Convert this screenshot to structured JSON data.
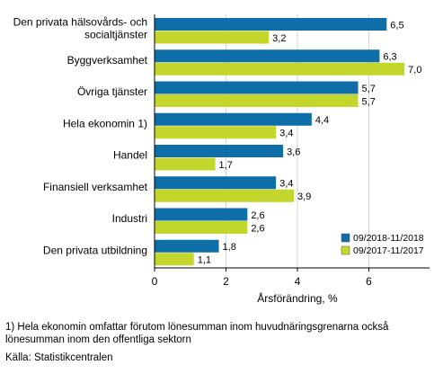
{
  "chart_data": {
    "type": "bar",
    "orientation": "horizontal",
    "categories": [
      "Den privata hälsovårds- och socialtjänster",
      "Byggverksamhet",
      "Övriga tjänster",
      "Hela ekonomin 1)",
      "Handel",
      "Finansiell verksamhet",
      "Industri",
      "Den privata utbildning"
    ],
    "category_lines": [
      [
        "Den privata hälsovårds- och",
        "socialtjänster"
      ],
      [
        "Byggverksamhet"
      ],
      [
        "Övriga tjänster"
      ],
      [
        "Hela ekonomin 1)"
      ],
      [
        "Handel"
      ],
      [
        "Finansiell verksamhet"
      ],
      [
        "Industri"
      ],
      [
        "Den privata utbildning"
      ]
    ],
    "series": [
      {
        "name": "09/2018-11/2018",
        "color": "#0f6ea8",
        "values": [
          6.5,
          6.3,
          5.7,
          4.4,
          3.6,
          3.4,
          2.6,
          1.8
        ],
        "labels": [
          "6,5",
          "6,3",
          "5,7",
          "4,4",
          "3,6",
          "3,4",
          "2,6",
          "1,8"
        ]
      },
      {
        "name": "09/2017-11/2017",
        "color": "#c3d62b",
        "values": [
          3.2,
          7.0,
          5.7,
          3.4,
          1.7,
          3.9,
          2.6,
          1.1
        ],
        "labels": [
          "3,2",
          "7,0",
          "5,7",
          "3,4",
          "1,7",
          "3,9",
          "2,6",
          "1,1"
        ]
      }
    ],
    "xlim": [
      0,
      7.7
    ],
    "xticks": [
      0,
      2,
      4,
      6
    ],
    "xtick_labels": [
      "0",
      "2",
      "4",
      "6"
    ],
    "xlabel": "Årsförändring, %",
    "ylabel": "",
    "title": "",
    "grid": "vertical",
    "legend_position": "bottom-right"
  },
  "footnote": "1) Hela ekonomin omfattar förutom lönesumman inom huvudnäringsgrenarna också lönesumman inom den offentliga sektorn",
  "source": "Källa: Statistikcentralen"
}
